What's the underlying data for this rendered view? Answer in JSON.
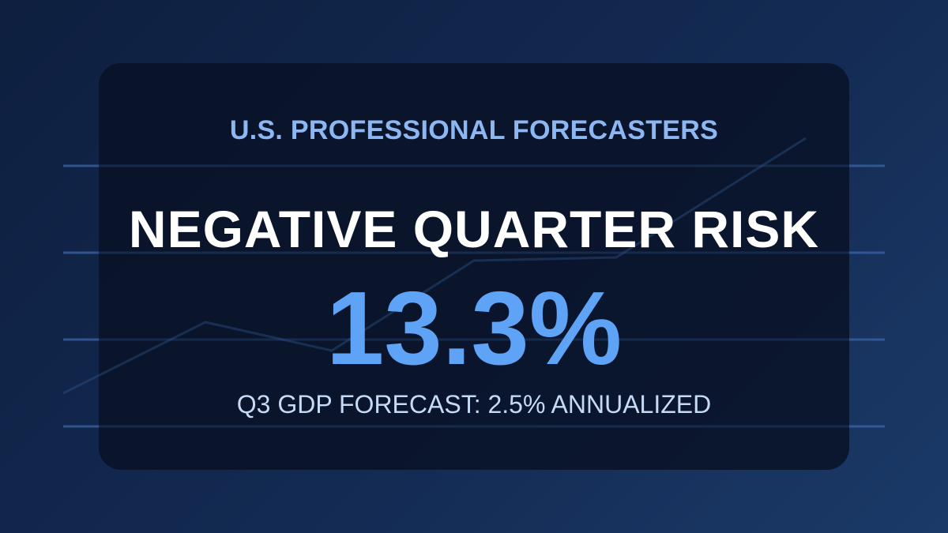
{
  "card": {
    "eyebrow": "U.S. PROFESSIONAL FORECASTERS",
    "headline": "NEGATIVE QUARTER RISK",
    "figure": "13.3%",
    "footnote": "Q3 GDP FORECAST: 2.5% ANNUALIZED"
  }
}
